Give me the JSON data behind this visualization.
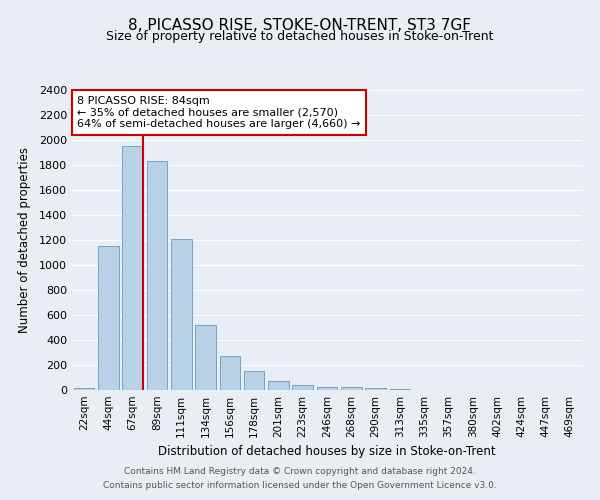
{
  "title1": "8, PICASSO RISE, STOKE-ON-TRENT, ST3 7GF",
  "title2": "Size of property relative to detached houses in Stoke-on-Trent",
  "xlabel": "Distribution of detached houses by size in Stoke-on-Trent",
  "ylabel": "Number of detached properties",
  "categories": [
    "22sqm",
    "44sqm",
    "67sqm",
    "89sqm",
    "111sqm",
    "134sqm",
    "156sqm",
    "178sqm",
    "201sqm",
    "223sqm",
    "246sqm",
    "268sqm",
    "290sqm",
    "313sqm",
    "335sqm",
    "357sqm",
    "380sqm",
    "402sqm",
    "424sqm",
    "447sqm",
    "469sqm"
  ],
  "values": [
    20,
    1150,
    1950,
    1830,
    1210,
    520,
    270,
    150,
    75,
    40,
    25,
    25,
    18,
    5,
    2,
    1,
    1,
    0,
    0,
    0,
    0
  ],
  "bar_color": "#b8d0e8",
  "bar_edge_color": "#6699bb",
  "vline_color": "#cc0000",
  "annotation_text": "8 PICASSO RISE: 84sqm\n← 35% of detached houses are smaller (2,570)\n64% of semi-detached houses are larger (4,660) →",
  "annotation_box_color": "#ffffff",
  "annotation_box_edge_color": "#cc0000",
  "ylim": [
    0,
    2400
  ],
  "yticks": [
    0,
    200,
    400,
    600,
    800,
    1000,
    1200,
    1400,
    1600,
    1800,
    2000,
    2200,
    2400
  ],
  "footer1": "Contains HM Land Registry data © Crown copyright and database right 2024.",
  "footer2": "Contains public sector information licensed under the Open Government Licence v3.0.",
  "bg_color": "#e8eef4",
  "grid_color": "#ffffff",
  "title1_fontsize": 11,
  "title2_fontsize": 9,
  "xlabel_fontsize": 8.5,
  "ylabel_fontsize": 8.5,
  "tick_fontsize": 8,
  "xtick_fontsize": 7.5,
  "annotation_fontsize": 8,
  "footer_fontsize": 6.5
}
